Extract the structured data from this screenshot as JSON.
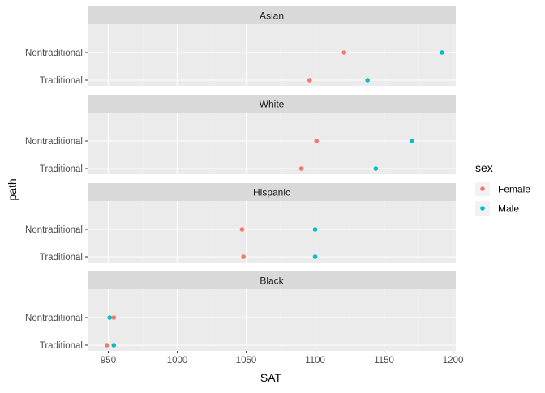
{
  "chart_data": {
    "type": "scatter",
    "facet_by": "group",
    "panels": [
      {
        "label": "Asian",
        "points": [
          {
            "path": "Nontraditional",
            "sex": "Female",
            "SAT": 1121
          },
          {
            "path": "Nontraditional",
            "sex": "Male",
            "SAT": 1192
          },
          {
            "path": "Traditional",
            "sex": "Female",
            "SAT": 1096
          },
          {
            "path": "Traditional",
            "sex": "Male",
            "SAT": 1138
          }
        ]
      },
      {
        "label": "White",
        "points": [
          {
            "path": "Nontraditional",
            "sex": "Female",
            "SAT": 1101
          },
          {
            "path": "Nontraditional",
            "sex": "Male",
            "SAT": 1170
          },
          {
            "path": "Traditional",
            "sex": "Female",
            "SAT": 1090
          },
          {
            "path": "Traditional",
            "sex": "Male",
            "SAT": 1144
          }
        ]
      },
      {
        "label": "Hispanic",
        "points": [
          {
            "path": "Nontraditional",
            "sex": "Female",
            "SAT": 1047
          },
          {
            "path": "Nontraditional",
            "sex": "Male",
            "SAT": 1100
          },
          {
            "path": "Traditional",
            "sex": "Female",
            "SAT": 1048
          },
          {
            "path": "Traditional",
            "sex": "Male",
            "SAT": 1100
          }
        ]
      },
      {
        "label": "Black",
        "points": [
          {
            "path": "Nontraditional",
            "sex": "Female",
            "SAT": 954
          },
          {
            "path": "Nontraditional",
            "sex": "Male",
            "SAT": 951
          },
          {
            "path": "Traditional",
            "sex": "Female",
            "SAT": 949
          },
          {
            "path": "Traditional",
            "sex": "Male",
            "SAT": 954
          }
        ]
      }
    ],
    "y_categories": [
      "Nontraditional",
      "Traditional"
    ],
    "xlabel": "SAT",
    "ylabel": "path",
    "xlim": [
      935,
      1202
    ],
    "x_ticks": [
      950,
      1000,
      1050,
      1100,
      1150,
      1200
    ],
    "grid": true,
    "legend": {
      "title": "sex",
      "position": "right",
      "entries": [
        {
          "name": "Female",
          "color": "#F8766D"
        },
        {
          "name": "Male",
          "color": "#00BFC4"
        }
      ]
    },
    "colors": {
      "Female": "#F8766D",
      "Male": "#00BFC4"
    }
  }
}
